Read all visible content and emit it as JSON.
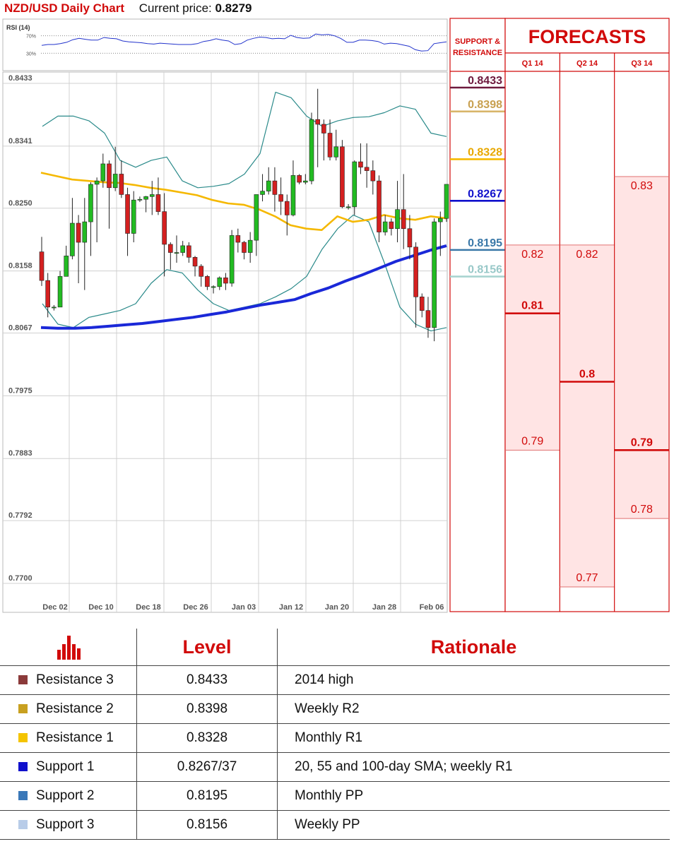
{
  "header": {
    "pair_title": "NZD/USD Daily Chart",
    "price_label": "Current price:",
    "price_value": "0.8279"
  },
  "colors": {
    "red": "#d10a0a",
    "bull_candle": "#22bb22",
    "bear_candle": "#d42020",
    "sma_short": "#f5b800",
    "sma_long": "#1a28d8",
    "bollinger": "#2a8a8a",
    "rsi_line": "#2233cc",
    "forecast_fill": "#ffe4e4",
    "resistance_3": "#8b3a3a",
    "resistance_2": "#c8a020",
    "resistance_1": "#f4c400",
    "support_1": "#1010cc",
    "support_2": "#3a78b8",
    "support_3": "#b8cce8"
  },
  "icons": {
    "table_header_icon": "bar-chart-icon"
  },
  "sr_panel": {
    "title": "SUPPORT & RESISTANCE",
    "levels": [
      {
        "label": "0.8433",
        "value": 0.8433,
        "color": "#6e1a3e",
        "text_color": "#6e1a3e"
      },
      {
        "label": "0.8398",
        "value": 0.8398,
        "color": "#d8b56a",
        "text_color": "#c8a050"
      },
      {
        "label": "0.8328",
        "value": 0.8328,
        "color": "#f5b800",
        "text_color": "#e8a800"
      },
      {
        "label": "0.8267",
        "value": 0.8267,
        "color": "#1010cc",
        "text_color": "#1010cc"
      },
      {
        "label": "0.8195",
        "value": 0.8195,
        "color": "#3a78a8",
        "text_color": "#3a78a8"
      },
      {
        "label": "0.8156",
        "value": 0.8156,
        "color": "#a8d4d0",
        "text_color": "#98c8c8"
      }
    ]
  },
  "forecasts": {
    "title": "FORECASTS",
    "columns": [
      {
        "name": "Q1 14",
        "high": 0.82,
        "median": 0.81,
        "low": 0.79,
        "high_label": "0.82",
        "median_label": "0.81",
        "low_label": "0.79",
        "median_bold": true
      },
      {
        "name": "Q2 14",
        "high": 0.82,
        "median": 0.8,
        "low": 0.77,
        "high_label": "0.82",
        "median_label": "0.8",
        "low_label": "0.77",
        "median_bold": true
      },
      {
        "name": "Q3 14",
        "high": 0.83,
        "median": 0.79,
        "low": 0.78,
        "high_label": "0.83",
        "median_label": "0.79",
        "low_label": "0.78",
        "median_bold": true
      }
    ]
  },
  "chart_data": {
    "type": "candlestick",
    "title": "NZD/USD Daily Chart",
    "ylim": [
      0.77,
      0.8433
    ],
    "y_ticks": [
      "0.8433",
      "0.8341",
      "0.8250",
      "0.8158",
      "0.8067",
      "0.7975",
      "0.7883",
      "0.7792",
      "0.7700"
    ],
    "x_ticks": [
      "Dec 02",
      "Dec 10",
      "Dec 18",
      "Dec 26",
      "Jan 03",
      "Jan 12",
      "Jan 20",
      "Jan 28",
      "Feb 06"
    ],
    "grid": true,
    "candles": [
      [
        0.8186,
        0.8144,
        0.8208,
        0.8136
      ],
      [
        0.8144,
        0.8105,
        0.8155,
        0.809
      ],
      [
        0.8105,
        0.8105,
        0.8108,
        0.81
      ],
      [
        0.8105,
        0.815,
        0.8158,
        0.8148
      ],
      [
        0.815,
        0.818,
        0.8195,
        0.815
      ],
      [
        0.818,
        0.8228,
        0.8265,
        0.8175
      ],
      [
        0.8228,
        0.82,
        0.824,
        0.814
      ],
      [
        0.82,
        0.823,
        0.8265,
        0.813
      ],
      [
        0.823,
        0.8285,
        0.8288,
        0.818
      ],
      [
        0.8285,
        0.829,
        0.8295,
        0.82
      ],
      [
        0.829,
        0.8315,
        0.833,
        0.828
      ],
      [
        0.8315,
        0.828,
        0.832,
        0.822
      ],
      [
        0.828,
        0.83,
        0.834,
        0.8275
      ],
      [
        0.83,
        0.827,
        0.832,
        0.8265
      ],
      [
        0.827,
        0.8213,
        0.828,
        0.818
      ],
      [
        0.8213,
        0.8262,
        0.8275,
        0.82
      ],
      [
        0.8262,
        0.8263,
        0.8267,
        0.8259
      ],
      [
        0.8263,
        0.8267,
        0.8268,
        0.8244
      ],
      [
        0.8267,
        0.827,
        0.829,
        0.824
      ],
      [
        0.827,
        0.8245,
        0.8295,
        0.824
      ],
      [
        0.8245,
        0.8197,
        0.8272,
        0.815
      ],
      [
        0.8197,
        0.8185,
        0.82,
        0.816
      ],
      [
        0.8185,
        0.8185,
        0.821,
        0.817
      ],
      [
        0.8185,
        0.8195,
        0.8202,
        0.818
      ],
      [
        0.8195,
        0.8178,
        0.82,
        0.817
      ],
      [
        0.8178,
        0.8165,
        0.818,
        0.815
      ],
      [
        0.8165,
        0.815,
        0.8168,
        0.8135
      ],
      [
        0.815,
        0.8135,
        0.8152,
        0.813
      ],
      [
        0.8135,
        0.8135,
        0.8137,
        0.8125
      ],
      [
        0.8135,
        0.8148,
        0.815,
        0.813
      ],
      [
        0.8148,
        0.814,
        0.8155,
        0.813
      ],
      [
        0.814,
        0.821,
        0.8218,
        0.8135
      ],
      [
        0.821,
        0.82,
        0.822,
        0.8185
      ],
      [
        0.82,
        0.8185,
        0.8202,
        0.8175
      ],
      [
        0.8185,
        0.8203,
        0.8215,
        0.817
      ],
      [
        0.8203,
        0.827,
        0.827,
        0.818
      ],
      [
        0.827,
        0.8275,
        0.83,
        0.826
      ],
      [
        0.8275,
        0.829,
        0.831,
        0.827
      ],
      [
        0.829,
        0.827,
        0.831,
        0.8245
      ],
      [
        0.827,
        0.826,
        0.8295,
        0.824
      ],
      [
        0.826,
        0.824,
        0.827,
        0.821
      ],
      [
        0.824,
        0.8298,
        0.832,
        0.8238
      ],
      [
        0.8298,
        0.8288,
        0.83,
        0.8285
      ],
      [
        0.8288,
        0.829,
        0.83,
        0.8285
      ],
      [
        0.829,
        0.838,
        0.839,
        0.8285
      ],
      [
        0.838,
        0.8373,
        0.8425,
        0.831
      ],
      [
        0.8373,
        0.836,
        0.838,
        0.832
      ],
      [
        0.836,
        0.8325,
        0.838,
        0.832
      ],
      [
        0.8325,
        0.834,
        0.8365,
        0.832
      ],
      [
        0.834,
        0.8252,
        0.835,
        0.825
      ],
      [
        0.8252,
        0.8252,
        0.8256,
        0.8248
      ],
      [
        0.8252,
        0.8318,
        0.832,
        0.824
      ],
      [
        0.8318,
        0.831,
        0.8345,
        0.83
      ],
      [
        0.831,
        0.8305,
        0.8345,
        0.828
      ],
      [
        0.8305,
        0.829,
        0.832,
        0.827
      ],
      [
        0.829,
        0.8215,
        0.8298,
        0.82
      ],
      [
        0.8215,
        0.823,
        0.824,
        0.821
      ],
      [
        0.823,
        0.822,
        0.8235,
        0.821
      ],
      [
        0.822,
        0.8248,
        0.829,
        0.82
      ],
      [
        0.8248,
        0.822,
        0.83,
        0.819
      ],
      [
        0.822,
        0.8193,
        0.824,
        0.8175
      ],
      [
        0.8193,
        0.812,
        0.82,
        0.8075
      ],
      [
        0.812,
        0.81,
        0.8125,
        0.809
      ],
      [
        0.81,
        0.8075,
        0.812,
        0.806
      ],
      [
        0.8075,
        0.823,
        0.8235,
        0.8055
      ],
      [
        0.823,
        0.8235,
        0.8245,
        0.818
      ],
      [
        0.8235,
        0.8285,
        0.8285,
        0.823
      ]
    ],
    "series": [
      {
        "style": "sma_short",
        "values": [
          0.8302,
          0.8297,
          0.8292,
          0.829,
          0.8288,
          0.8287,
          0.8284,
          0.828,
          0.8277,
          0.8273,
          0.8269,
          0.8262,
          0.8257,
          0.8255,
          0.8248,
          0.8238,
          0.8225,
          0.822,
          0.8218,
          0.8238,
          0.823,
          0.8233,
          0.824,
          0.8235,
          0.8233,
          0.8238,
          0.8235
        ]
      },
      {
        "style": "sma_long",
        "values": [
          0.8075,
          0.8074,
          0.8074,
          0.8075,
          0.8077,
          0.8079,
          0.8081,
          0.8084,
          0.8087,
          0.809,
          0.8094,
          0.8098,
          0.8103,
          0.8108,
          0.8112,
          0.8116,
          0.8125,
          0.8133,
          0.8143,
          0.8152,
          0.8162,
          0.8172,
          0.818,
          0.8188,
          0.8195
        ]
      },
      {
        "style": "bollinger",
        "values": [
          0.837,
          0.8385,
          0.8385,
          0.8378,
          0.836,
          0.832,
          0.831,
          0.832,
          0.8325,
          0.829,
          0.828,
          0.8282,
          0.8286,
          0.83,
          0.833,
          0.842,
          0.8412,
          0.8385,
          0.837,
          0.8378,
          0.8383,
          0.8384,
          0.839,
          0.84,
          0.8395,
          0.836,
          0.8355
        ]
      },
      {
        "style": "bollinger",
        "values": [
          0.811,
          0.808,
          0.8075,
          0.809,
          0.8095,
          0.81,
          0.811,
          0.814,
          0.816,
          0.8155,
          0.813,
          0.811,
          0.81,
          0.8105,
          0.811,
          0.812,
          0.8132,
          0.815,
          0.819,
          0.822,
          0.824,
          0.823,
          0.817,
          0.8105,
          0.808,
          0.807,
          0.8075
        ]
      }
    ],
    "rsi": {
      "label": "RSI (14)",
      "levels": [
        "70%",
        "30%"
      ],
      "ylim": [
        0,
        100
      ],
      "values": [
        48,
        50,
        50,
        52,
        55,
        61,
        64,
        62,
        60,
        60,
        66,
        64,
        63,
        58,
        56,
        55,
        54,
        52,
        51,
        53,
        52,
        51,
        50,
        50,
        50,
        52,
        57,
        59,
        63,
        60,
        58,
        50,
        52,
        60,
        64,
        67,
        66,
        63,
        64,
        63,
        71,
        66,
        64,
        65,
        74,
        72,
        73,
        70,
        64,
        55,
        55,
        60,
        60,
        59,
        57,
        51,
        53,
        52,
        49,
        46,
        38,
        35,
        36,
        52,
        54,
        56
      ]
    }
  },
  "table": {
    "headers": [
      "Level",
      "Rationale"
    ],
    "rows": [
      {
        "name": "Resistance 3",
        "level": "0.8433",
        "rationale": "2014 high",
        "color": "#8b3a3a"
      },
      {
        "name": "Resistance 2",
        "level": "0.8398",
        "rationale": "Weekly R2",
        "color": "#c8a020"
      },
      {
        "name": "Resistance 1",
        "level": "0.8328",
        "rationale": "Monthly R1",
        "color": "#f4c400"
      },
      {
        "name": "Support 1",
        "level": "0.8267/37",
        "rationale": "20, 55 and 100-day SMA; weekly R1",
        "color": "#1010cc"
      },
      {
        "name": "Support 2",
        "level": "0.8195",
        "rationale": "Monthly PP",
        "color": "#3a78b8"
      },
      {
        "name": "Support 3",
        "level": "0.8156",
        "rationale": "Weekly PP",
        "color": "#b8cce8"
      }
    ]
  }
}
